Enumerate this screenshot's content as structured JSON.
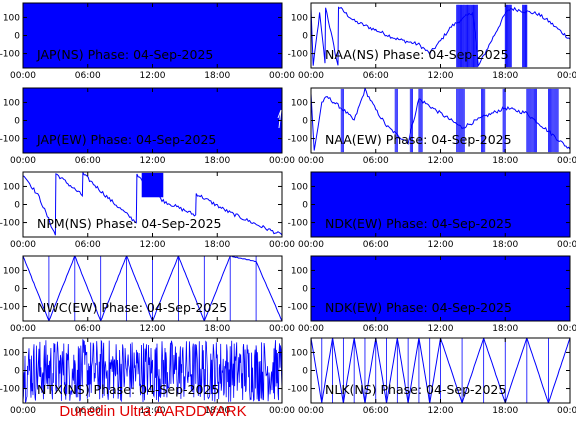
{
  "footer": "Dunedin Ultra AARDDVARK",
  "colors": {
    "trace": "#0000ff",
    "frame": "#000000",
    "footer": "#e00000"
  },
  "chart_data": [
    {
      "type": "line",
      "title": "JAP(NS) Phase: 04-Sep-2025",
      "ylim": [
        -180,
        180
      ],
      "yticks": [
        100,
        0,
        -100
      ],
      "xticks": [
        "00:00",
        "06:00",
        "12:00",
        "18:00",
        "00:00"
      ],
      "pattern": "dense"
    },
    {
      "type": "line",
      "title": "NAA(NS) Phase: 04-Sep-2025",
      "ylim": [
        -180,
        180
      ],
      "yticks": [
        100,
        0,
        -100
      ],
      "xticks": [
        "00:00",
        "06:00",
        "12:00",
        "18:00",
        "00:00"
      ],
      "pattern": "naa_ns",
      "x": [
        0.0,
        0.2,
        0.8,
        1.3,
        1.35,
        2.5,
        2.55,
        4.0,
        6.0,
        8.0,
        10.0,
        11.0,
        12.0,
        13.0,
        14.0,
        15.0,
        15.5,
        18.0,
        18.5,
        21.0,
        22.0,
        24.0
      ],
      "y": [
        150,
        -170,
        120,
        -150,
        160,
        -170,
        160,
        80,
        30,
        -20,
        -50,
        -100,
        -30,
        50,
        90,
        130,
        -170,
        120,
        150,
        120,
        80,
        -20
      ]
    },
    {
      "type": "line",
      "title": "JAP(EW) Phase: 04-Sep-2025",
      "ylim": [
        -180,
        180
      ],
      "yticks": [
        100,
        0,
        -100
      ],
      "xticks": [
        "00:00",
        "06:00",
        "12:00",
        "18:00",
        "00:00"
      ],
      "pattern": "dense"
    },
    {
      "type": "line",
      "title": "NAA(EW) Phase: 04-Sep-2025",
      "ylim": [
        -180,
        180
      ],
      "yticks": [
        100,
        0,
        -100
      ],
      "xticks": [
        "00:00",
        "06:00",
        "12:00",
        "18:00",
        "00:00"
      ],
      "pattern": "naa_ew",
      "x": [
        0.0,
        0.3,
        1.0,
        1.5,
        3.0,
        4.0,
        5.0,
        6.0,
        7.0,
        8.0,
        9.0,
        10.0,
        12.0,
        14.0,
        16.0,
        18.0,
        20.0,
        22.0,
        24.0
      ],
      "y": [
        150,
        -170,
        100,
        130,
        60,
        0,
        170,
        60,
        -30,
        -80,
        -120,
        120,
        40,
        -40,
        20,
        70,
        40,
        -60,
        -160
      ]
    },
    {
      "type": "line",
      "title": "NPM(NS) Phase: 04-Sep-2025",
      "ylim": [
        -180,
        180
      ],
      "yticks": [
        100,
        0,
        -100
      ],
      "xticks": [
        "00:00",
        "06:00",
        "12:00",
        "18:00",
        "00:00"
      ],
      "pattern": "npm",
      "x": [
        0.0,
        1.5,
        3.0,
        3.05,
        5.5,
        5.55,
        8.0,
        10.5,
        10.55,
        13.0,
        16.0,
        16.05,
        19.0,
        22.0,
        24.0
      ],
      "y": [
        170,
        40,
        -170,
        170,
        50,
        170,
        30,
        -100,
        160,
        20,
        -60,
        60,
        -40,
        -120,
        -170
      ]
    },
    {
      "type": "line",
      "title": "NDK(EW) Phase: 04-Sep-2025",
      "ylim": [
        -180,
        180
      ],
      "yticks": [
        100,
        0,
        -100
      ],
      "xticks": [
        "00:00",
        "06:00",
        "12:00",
        "18:00",
        "00:00"
      ],
      "pattern": "dense"
    },
    {
      "type": "line",
      "title": "NWC(EW) Phase: 04-Sep-2025",
      "ylim": [
        -180,
        180
      ],
      "yticks": [
        100,
        0,
        -100
      ],
      "xticks": [
        "00:00",
        "06:00",
        "12:00",
        "18:00",
        "00:00"
      ],
      "pattern": "sawtooth",
      "cycles": 10,
      "x": [
        0.0,
        2.4,
        4.8,
        7.2,
        9.6,
        12.0,
        14.4,
        16.8,
        19.2,
        21.6,
        24.0
      ],
      "y": [
        180,
        -180,
        180,
        -180,
        180,
        -180,
        180,
        -180,
        180,
        150,
        -180
      ]
    },
    {
      "type": "line",
      "title": "NDK(EW) Phase: 04-Sep-2025",
      "ylim": [
        -180,
        180
      ],
      "yticks": [
        100,
        0,
        -100
      ],
      "xticks": [
        "00:00",
        "06:00",
        "12:00",
        "18:00",
        "00:00"
      ],
      "pattern": "dense"
    },
    {
      "type": "line",
      "title": "NTX(NS) Phase: 04-Sep-2025",
      "ylim": [
        -180,
        180
      ],
      "yticks": [
        100,
        0,
        -100
      ],
      "xticks": [
        "00:00",
        "06:00",
        "12:00",
        "18:00",
        "00:00"
      ],
      "pattern": "noise"
    },
    {
      "type": "line",
      "title": "NLK(NS) Phase: 04-Sep-2025",
      "ylim": [
        -180,
        180
      ],
      "yticks": [
        100,
        0,
        -100
      ],
      "xticks": [
        "00:00",
        "06:00",
        "12:00",
        "18:00",
        "00:00"
      ],
      "pattern": "sawtooth",
      "cycles": 22,
      "x": [
        0.0,
        1.0,
        2.0,
        3.0,
        4.0,
        5.0,
        6.0,
        7.0,
        8.0,
        9.0,
        10.0,
        11.0,
        12.0,
        14.0,
        16.0,
        18.0,
        20.0,
        22.0,
        24.0
      ],
      "y": [
        180,
        -180,
        180,
        -180,
        180,
        -180,
        180,
        -180,
        180,
        -180,
        180,
        -180,
        180,
        -180,
        180,
        -180,
        180,
        -180,
        180
      ]
    }
  ]
}
